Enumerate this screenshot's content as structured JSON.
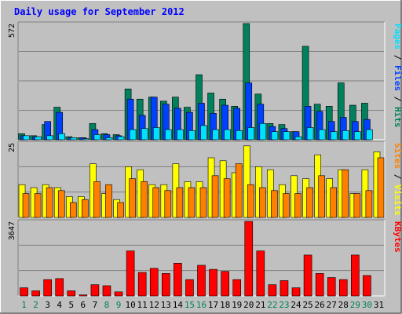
{
  "title": "Daily usage for September 2012",
  "colors": {
    "background": "#c0c0c0",
    "title": "#0000ff",
    "hits": "#00805c",
    "files": "#0040ff",
    "pages": "#00e0ff",
    "visits": "#ffff00",
    "sites": "#ff8000",
    "kbytes": "#ff0000",
    "weekend_label": "#00805c",
    "weekday_label": "#000000"
  },
  "chart_data": [
    {
      "type": "bar",
      "panel": "top",
      "ymax_label": "572",
      "ylim": [
        0,
        572
      ],
      "categories": [
        "1",
        "2",
        "3",
        "4",
        "5",
        "6",
        "7",
        "8",
        "9",
        "10",
        "11",
        "12",
        "13",
        "14",
        "15",
        "16",
        "17",
        "18",
        "19",
        "20",
        "21",
        "22",
        "23",
        "24",
        "25",
        "26",
        "27",
        "28",
        "29",
        "30",
        "31"
      ],
      "weekend_days": [
        "1",
        "2",
        "8",
        "9",
        "15",
        "16",
        "22",
        "23",
        "29",
        "30"
      ],
      "legend": [
        "Pages",
        "Files",
        "Hits"
      ],
      "series": [
        {
          "name": "Hits",
          "values": [
            30,
            20,
            75,
            160,
            15,
            10,
            80,
            30,
            25,
            250,
            200,
            210,
            190,
            210,
            160,
            320,
            230,
            200,
            165,
            572,
            225,
            80,
            75,
            40,
            460,
            175,
            165,
            280,
            170,
            180,
            0
          ]
        },
        {
          "name": "Files",
          "values": [
            20,
            15,
            90,
            135,
            10,
            10,
            50,
            25,
            20,
            200,
            120,
            210,
            175,
            155,
            135,
            180,
            130,
            170,
            155,
            280,
            175,
            65,
            55,
            40,
            165,
            140,
            90,
            110,
            90,
            100,
            0
          ]
        },
        {
          "name": "Pages",
          "values": [
            20,
            15,
            20,
            30,
            10,
            5,
            25,
            10,
            15,
            50,
            55,
            60,
            50,
            50,
            45,
            70,
            50,
            50,
            45,
            60,
            80,
            40,
            40,
            15,
            60,
            50,
            40,
            45,
            40,
            50,
            0
          ]
        }
      ]
    },
    {
      "type": "bar",
      "panel": "middle",
      "ymax_label": "25",
      "ylim": [
        0,
        25
      ],
      "categories": [
        "1",
        "2",
        "3",
        "4",
        "5",
        "6",
        "7",
        "8",
        "9",
        "10",
        "11",
        "12",
        "13",
        "14",
        "15",
        "16",
        "17",
        "18",
        "19",
        "20",
        "21",
        "22",
        "23",
        "24",
        "25",
        "26",
        "27",
        "28",
        "29",
        "30",
        "31"
      ],
      "legend": [
        "Sites",
        "Visits"
      ],
      "series": [
        {
          "name": "Visits",
          "values": [
            11,
            10,
            11,
            10,
            7,
            7,
            18,
            8,
            6,
            17,
            16,
            11,
            11,
            18,
            12,
            12,
            20,
            19,
            15,
            24,
            17,
            16,
            11,
            14,
            13,
            21,
            13,
            16,
            8,
            16,
            22
          ]
        },
        {
          "name": "Sites",
          "values": [
            8,
            8,
            10,
            9,
            5,
            6,
            12,
            11,
            5,
            13,
            12,
            10,
            9,
            10,
            10,
            10,
            14,
            13,
            18,
            11,
            10,
            9,
            8,
            8,
            10,
            14,
            10,
            16,
            8,
            9,
            20
          ]
        }
      ]
    },
    {
      "type": "bar",
      "panel": "bottom",
      "ymax_label": "3647",
      "ylim": [
        0,
        3647
      ],
      "categories": [
        "1",
        "2",
        "3",
        "4",
        "5",
        "6",
        "7",
        "8",
        "9",
        "10",
        "11",
        "12",
        "13",
        "14",
        "15",
        "16",
        "17",
        "18",
        "19",
        "20",
        "21",
        "22",
        "23",
        "24",
        "25",
        "26",
        "27",
        "28",
        "29",
        "30",
        "31"
      ],
      "legend": [
        "KBytes"
      ],
      "series": [
        {
          "name": "KBytes",
          "values": [
            400,
            250,
            800,
            850,
            250,
            50,
            550,
            500,
            200,
            2200,
            1150,
            1350,
            1100,
            1600,
            800,
            1500,
            1300,
            1200,
            800,
            3647,
            2200,
            550,
            750,
            400,
            2000,
            1100,
            900,
            800,
            2000,
            1000,
            0
          ]
        }
      ]
    }
  ]
}
